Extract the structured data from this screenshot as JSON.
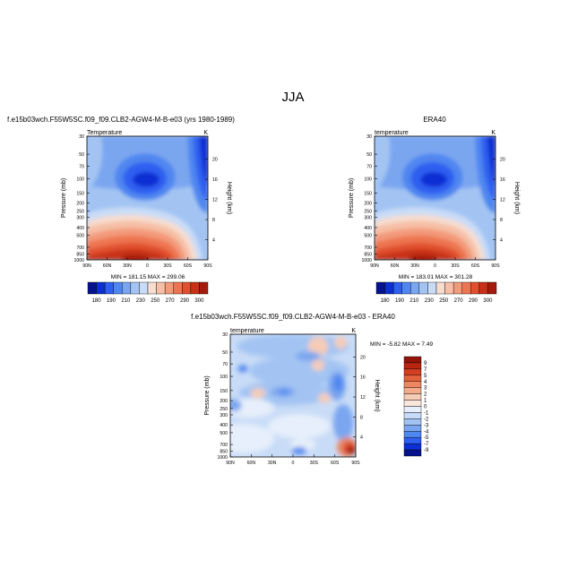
{
  "figure_title": "JJA",
  "colors": {
    "warm_scale": [
      "#06128c",
      "#0b2fd2",
      "#2e5ff0",
      "#4f86f0",
      "#7aa6f0",
      "#a3c4f3",
      "#c9dcf7",
      "#f6ddd0",
      "#f6bfa6",
      "#f39a7a",
      "#ed7450",
      "#e0502f",
      "#c73017",
      "#a61a0b"
    ],
    "diff_scale": [
      "#06128c",
      "#0b2fd2",
      "#2e5ff0",
      "#4f86f0",
      "#7aa6f0",
      "#a3c4f3",
      "#c9dcf7",
      "#e6effb",
      "#fbe6dc",
      "#f6ccb7",
      "#f3ab8c",
      "#ec8663",
      "#e3613d",
      "#d23f21",
      "#b8260f",
      "#92140a"
    ]
  },
  "chart_data": [
    {
      "type": "heatmap",
      "title": "f.e15b03wch.F55W5SC.f09_f09.CLB2-AGW4-M-B-e03 (yrs 1980-1989)",
      "subtitle_left": "Temperature",
      "subtitle_right": "K",
      "ylabel": "Pressure (mb)",
      "ylabel_right": "Height (km)",
      "x_ticks": [
        "90N",
        "60N",
        "30N",
        "0",
        "30S",
        "60S",
        "90S"
      ],
      "y_ticks": [
        "30",
        "50",
        "70",
        "100",
        "150",
        "200",
        "250",
        "300",
        "400",
        "500",
        "700",
        "850",
        "1000"
      ],
      "y_ticks_right": [
        "20",
        "16",
        "12",
        "8",
        "4"
      ],
      "stats": "MIN = 181.15   MAX = 299.06",
      "colorbar_labels": [
        "180",
        "190",
        "210",
        "230",
        "250",
        "270",
        "290",
        "300"
      ]
    },
    {
      "type": "heatmap",
      "title": "ERA40",
      "subtitle_left": "temperature",
      "subtitle_right": "K",
      "ylabel": "Pressure (mb)",
      "ylabel_right": "Height (km)",
      "x_ticks": [
        "90N",
        "60N",
        "30N",
        "0",
        "30S",
        "60S",
        "90S"
      ],
      "y_ticks": [
        "30",
        "50",
        "70",
        "100",
        "150",
        "200",
        "250",
        "300",
        "400",
        "500",
        "700",
        "850",
        "1000"
      ],
      "y_ticks_right": [
        "20",
        "16",
        "12",
        "8",
        "4"
      ],
      "stats": "MIN = 183.01   MAX = 301.28",
      "colorbar_labels": [
        "180",
        "190",
        "210",
        "230",
        "250",
        "270",
        "290",
        "300"
      ]
    },
    {
      "type": "heatmap",
      "title": "f.e15b03wch.F55W5SC.f09_f09.CLB2-AGW4-M-B-e03 - ERA40",
      "subtitle_left": "temperature",
      "subtitle_right": "K",
      "ylabel": "Pressure (mb)",
      "ylabel_right": "Height (km)",
      "x_ticks": [
        "90N",
        "60N",
        "30N",
        "0",
        "30S",
        "60S",
        "90S"
      ],
      "y_ticks": [
        "30",
        "50",
        "70",
        "100",
        "150",
        "200",
        "250",
        "300",
        "400",
        "500",
        "700",
        "850",
        "1000"
      ],
      "y_ticks_right": [
        "20",
        "16",
        "12",
        "8",
        "4"
      ],
      "stats": "MIN = -5.82   MAX =   7.49",
      "colorbar_labels": [
        "9",
        "7",
        "5",
        "4",
        "3",
        "2",
        "1",
        "0",
        "-1",
        "-2",
        "-3",
        "-4",
        "-5",
        "-7",
        "-9"
      ]
    }
  ]
}
